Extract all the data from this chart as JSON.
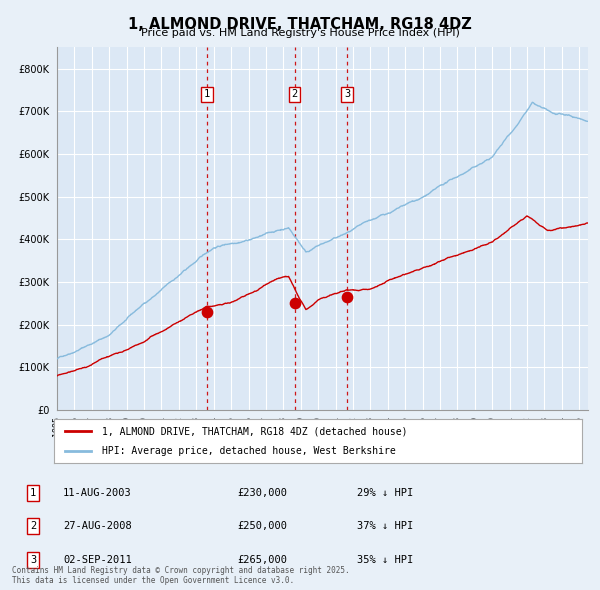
{
  "title": "1, ALMOND DRIVE, THATCHAM, RG18 4DZ",
  "subtitle": "Price paid vs. HM Land Registry's House Price Index (HPI)",
  "bg_color": "#e8f0f8",
  "plot_bg_color": "#dce8f5",
  "grid_color": "#ffffff",
  "red_line_color": "#cc0000",
  "blue_line_color": "#88bbdd",
  "purchase_dates": [
    2003.61,
    2008.65,
    2011.67
  ],
  "purchase_prices": [
    230000,
    250000,
    265000
  ],
  "purchase_labels": [
    "1",
    "2",
    "3"
  ],
  "purchase_display": [
    {
      "label": "1",
      "date": "11-AUG-2003",
      "price": "£230,000",
      "hpi": "29% ↓ HPI"
    },
    {
      "label": "2",
      "date": "27-AUG-2008",
      "price": "£250,000",
      "hpi": "37% ↓ HPI"
    },
    {
      "label": "3",
      "date": "02-SEP-2011",
      "price": "£265,000",
      "hpi": "35% ↓ HPI"
    }
  ],
  "xmin": 1995,
  "xmax": 2025.5,
  "ymin": 0,
  "ymax": 850000,
  "yticks": [
    0,
    100000,
    200000,
    300000,
    400000,
    500000,
    600000,
    700000,
    800000
  ],
  "legend_label_red": "1, ALMOND DRIVE, THATCHAM, RG18 4DZ (detached house)",
  "legend_label_blue": "HPI: Average price, detached house, West Berkshire",
  "footer": "Contains HM Land Registry data © Crown copyright and database right 2025.\nThis data is licensed under the Open Government Licence v3.0."
}
